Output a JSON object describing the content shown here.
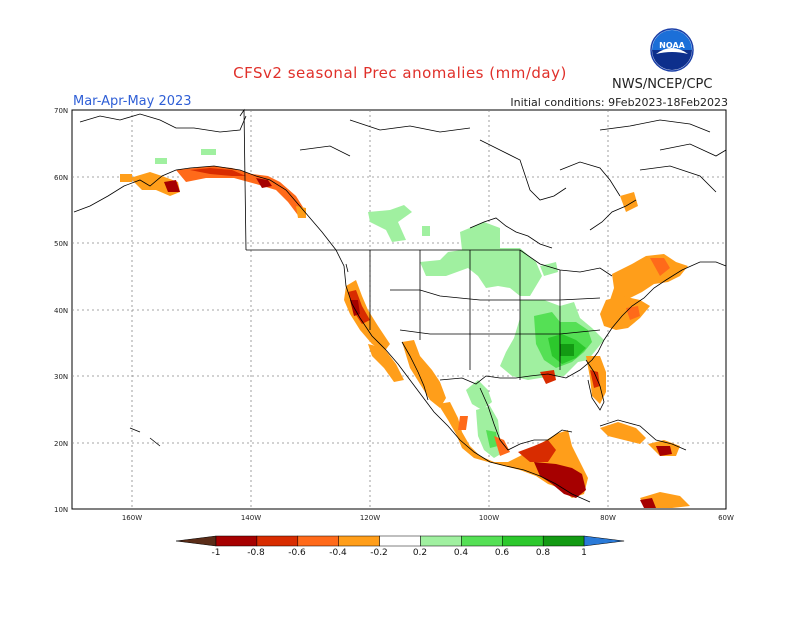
{
  "header": {
    "title": "CFSv2 seasonal Prec anomalies (mm/day)",
    "season": "Mar-Apr-May 2023",
    "initial_conditions": "Initial conditions: 9Feb2023-18Feb2023",
    "agency": "NWS/NCEP/CPC",
    "logo_text": "NOAA"
  },
  "axes": {
    "lat_labels": [
      "70N",
      "60N",
      "50N",
      "40N",
      "30N",
      "20N",
      "10N"
    ],
    "lon_labels": [
      "160W",
      "140W",
      "120W",
      "100W",
      "80W",
      "60W"
    ]
  },
  "colorbar": {
    "labels": [
      "-1",
      "-0.8",
      "-0.6",
      "-0.4",
      "-0.2",
      "0.2",
      "0.4",
      "0.6",
      "0.8",
      "1"
    ],
    "colors": [
      "#5a2c18",
      "#a60000",
      "#d82c00",
      "#ff6a1a",
      "#ff9e1a",
      "#ffffff",
      "#a0f0a0",
      "#55e055",
      "#2cc82c",
      "#139a13",
      "#2a7ad8"
    ]
  },
  "colors": {
    "border": "#000000",
    "grid": "#888888"
  }
}
